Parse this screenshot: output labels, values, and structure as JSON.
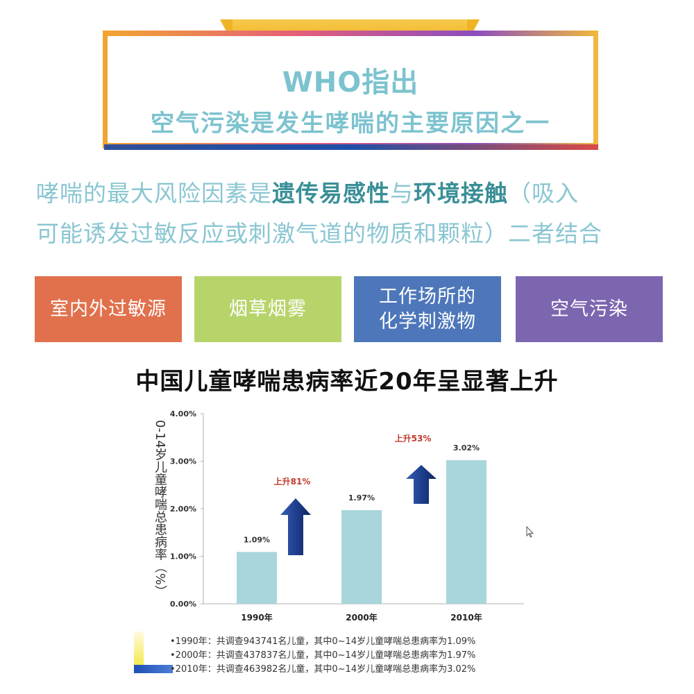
{
  "banner": {
    "line1": "WHO指出",
    "line2": "空气污染是发生哮喘的主要原因之一"
  },
  "intro": {
    "part1": "哮喘的最大风险因素是",
    "bold1": "遗传易感性",
    "part2": "与",
    "bold2": "环境接触",
    "part3": "（吸入",
    "line2": "可能诱发过敏反应或刺激气道的物质和颗粒）二者结合"
  },
  "factors": [
    {
      "line1": "室内外过敏源",
      "line2": "",
      "color": "#e1714d"
    },
    {
      "line1": "烟草烟雾",
      "line2": "",
      "color": "#b7d46a"
    },
    {
      "line1": "工作场所的",
      "line2": "化学刺激物",
      "color": "#4d77ba"
    },
    {
      "line1": "空气污染",
      "line2": "",
      "color": "#7d66b0"
    }
  ],
  "chart_heading": "中国儿童哮喘患病率近20年呈显著上升",
  "chart_data": {
    "type": "bar",
    "ylabel": "0-14岁儿童哮喘总患病率（%）",
    "categories": [
      "1990年",
      "2000年",
      "2010年"
    ],
    "values": [
      1.09,
      1.97,
      3.02
    ],
    "value_labels": [
      "1.09%",
      "1.97%",
      "3.02%"
    ],
    "ylim": [
      0,
      4
    ],
    "yticks": [
      "0.00%",
      "1.00%",
      "2.00%",
      "3.00%",
      "4.00%"
    ],
    "bar_color": "#a9d5dc",
    "annotations": [
      {
        "text": "上升81%",
        "color": "#c0392b"
      },
      {
        "text": "上升53%",
        "color": "#c0392b"
      }
    ],
    "arrow_color": "#1f3f8f"
  },
  "notes": [
    "•1990年：共调查943741名儿童，其中0~14岁儿童哮喘总患病率为1.09%",
    "•2000年：共调查437837名儿童，其中0~14岁儿童哮喘总患病率为1.97%",
    "•2010年：共调查463982名儿童，其中0~14岁儿童哮喘总患病率为3.02%"
  ]
}
